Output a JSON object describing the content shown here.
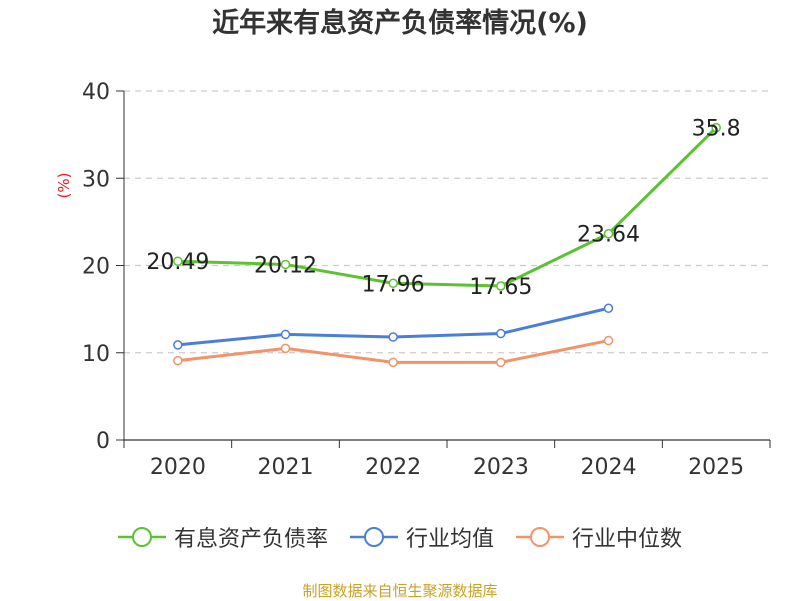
{
  "chart_data": {
    "type": "line",
    "title": "近年来有息资产负债率情况(%)",
    "ylabel": "(%)",
    "xlabel": "",
    "categories": [
      "2020",
      "2021",
      "2022",
      "2023",
      "2024",
      "2025"
    ],
    "ylim": [
      0,
      40
    ],
    "yticks": [
      0,
      10,
      20,
      30,
      40
    ],
    "grid": "horizontal dashed",
    "legend_position": "bottom",
    "series": [
      {
        "name": "有息资产负债率",
        "color": "#5cc232",
        "values": [
          20.49,
          20.12,
          17.96,
          17.65,
          23.64,
          35.8
        ],
        "labels": [
          "20.49",
          "20.12",
          "17.96",
          "17.65",
          "23.64",
          "35.8"
        ]
      },
      {
        "name": "行业均值",
        "color": "#4a7fd8",
        "values": [
          10.9,
          12.1,
          11.8,
          12.2,
          15.1,
          null
        ]
      },
      {
        "name": "行业中位数",
        "color": "#f2936a",
        "values": [
          9.1,
          10.5,
          8.9,
          8.9,
          11.4,
          null
        ]
      }
    ]
  },
  "footer": {
    "source": "制图数据来自恒生聚源数据库"
  }
}
